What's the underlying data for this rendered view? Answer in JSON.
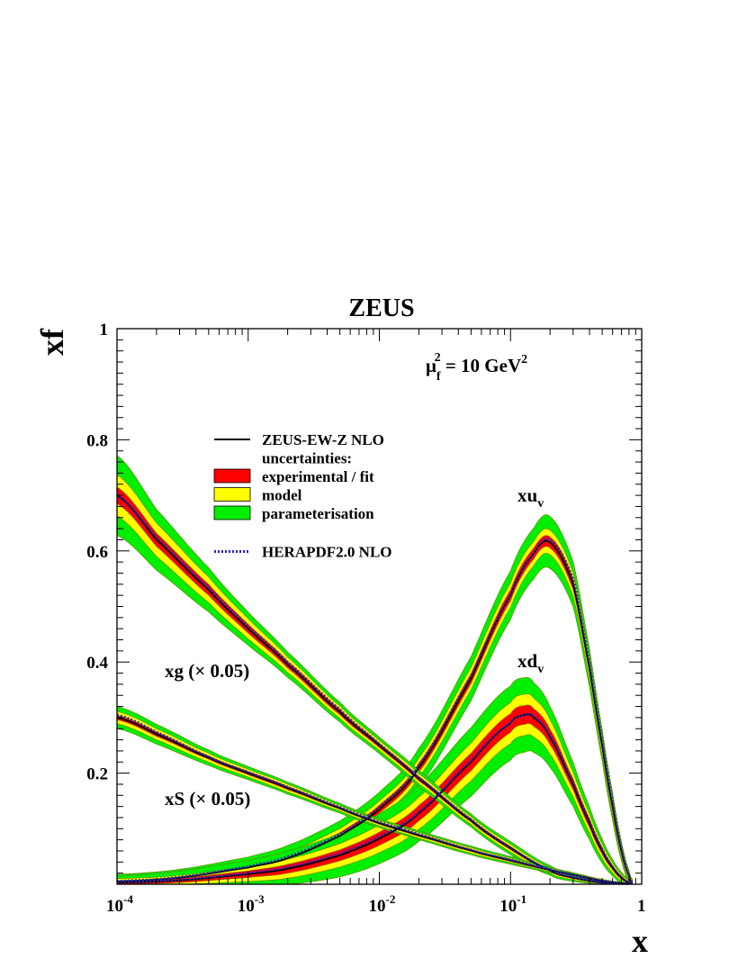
{
  "chart_data": {
    "type": "line",
    "title": "ZEUS",
    "xlabel": "x",
    "ylabel": "xf",
    "scale_annotation": {
      "main": "μ",
      "sub": "f",
      "sup": "2",
      "rest": " = 10 GeV",
      "rest_sup": "2"
    },
    "xscale": "log",
    "xlim": [
      0.0001,
      1
    ],
    "ylim": [
      0,
      1
    ],
    "x_ticks": [
      {
        "base": "10",
        "exp": "-4",
        "value": 0.0001
      },
      {
        "base": "10",
        "exp": "-3",
        "value": 0.001
      },
      {
        "base": "10",
        "exp": "-2",
        "value": 0.01
      },
      {
        "base": "10",
        "exp": "-1",
        "value": 0.1
      },
      {
        "base": "1",
        "exp": "",
        "value": 1
      }
    ],
    "y_ticks": [
      {
        "label": "0.2",
        "value": 0.2
      },
      {
        "label": "0.4",
        "value": 0.4
      },
      {
        "label": "0.6",
        "value": 0.6
      },
      {
        "label": "0.8",
        "value": 0.8
      },
      {
        "label": "1",
        "value": 1.0
      }
    ],
    "grid": false,
    "legend": {
      "placement": "top-left",
      "entries": [
        {
          "label": "ZEUS-EW-Z NLO",
          "style": "line",
          "color": "#000000"
        },
        {
          "label": "uncertainties:",
          "style": "none"
        },
        {
          "label": "experimental / fit",
          "style": "box",
          "color": "#ff0000"
        },
        {
          "label": "model",
          "style": "box",
          "color": "#ffff00"
        },
        {
          "label": "parameterisation",
          "style": "box",
          "color": "#00ee00"
        },
        {
          "label": "HERAPDF2.0 NLO",
          "style": "dotted",
          "color": "#2222cc"
        }
      ]
    },
    "series": [
      {
        "id": "xuv",
        "label": {
          "main": "xu",
          "sub": "v"
        },
        "x": [
          0.0001,
          0.0003,
          0.001,
          0.002,
          0.005,
          0.01,
          0.02,
          0.05,
          0.1,
          0.15,
          0.2,
          0.3,
          0.4,
          0.5,
          0.6,
          0.7,
          0.8,
          0.85
        ],
        "y": [
          0.005,
          0.012,
          0.03,
          0.047,
          0.087,
          0.135,
          0.21,
          0.37,
          0.52,
          0.595,
          0.615,
          0.54,
          0.39,
          0.25,
          0.14,
          0.06,
          0.015,
          0.003
        ],
        "exp_unc": [
          0.003,
          0.003,
          0.004,
          0.005,
          0.006,
          0.007,
          0.008,
          0.009,
          0.01,
          0.01,
          0.01,
          0.01,
          0.009,
          0.008,
          0.007,
          0.005,
          0.003,
          0.002
        ],
        "model_unc": [
          0.004,
          0.004,
          0.005,
          0.006,
          0.007,
          0.008,
          0.009,
          0.011,
          0.012,
          0.012,
          0.012,
          0.011,
          0.01,
          0.009,
          0.008,
          0.006,
          0.004,
          0.002
        ],
        "param_unc": [
          0.006,
          0.008,
          0.01,
          0.012,
          0.014,
          0.016,
          0.018,
          0.02,
          0.022,
          0.024,
          0.025,
          0.02,
          0.016,
          0.012,
          0.01,
          0.007,
          0.004,
          0.002
        ],
        "herapdf": [
          0.006,
          0.013,
          0.032,
          0.05,
          0.09,
          0.14,
          0.215,
          0.375,
          0.52,
          0.595,
          0.62,
          0.55,
          0.4,
          0.26,
          0.15,
          0.065,
          0.017,
          0.003
        ]
      },
      {
        "id": "xdv",
        "label": {
          "main": "xd",
          "sub": "v"
        },
        "x": [
          0.0001,
          0.0003,
          0.001,
          0.002,
          0.005,
          0.01,
          0.02,
          0.05,
          0.1,
          0.13,
          0.15,
          0.2,
          0.3,
          0.4,
          0.5,
          0.6,
          0.7,
          0.8,
          0.85
        ],
        "y": [
          0.003,
          0.007,
          0.018,
          0.028,
          0.052,
          0.082,
          0.128,
          0.22,
          0.29,
          0.305,
          0.3,
          0.265,
          0.18,
          0.11,
          0.06,
          0.03,
          0.012,
          0.003,
          0.001
        ],
        "exp_unc": [
          0.003,
          0.004,
          0.006,
          0.008,
          0.01,
          0.012,
          0.014,
          0.016,
          0.017,
          0.017,
          0.016,
          0.014,
          0.01,
          0.008,
          0.006,
          0.004,
          0.003,
          0.002,
          0.001
        ],
        "model_unc": [
          0.004,
          0.005,
          0.007,
          0.009,
          0.011,
          0.013,
          0.015,
          0.018,
          0.02,
          0.02,
          0.019,
          0.017,
          0.012,
          0.009,
          0.007,
          0.005,
          0.003,
          0.002,
          0.001
        ],
        "param_unc": [
          0.005,
          0.008,
          0.012,
          0.015,
          0.018,
          0.02,
          0.022,
          0.028,
          0.03,
          0.03,
          0.028,
          0.024,
          0.018,
          0.013,
          0.009,
          0.006,
          0.004,
          0.002,
          0.001
        ],
        "herapdf": [
          0.004,
          0.008,
          0.02,
          0.031,
          0.055,
          0.086,
          0.13,
          0.222,
          0.29,
          0.305,
          0.302,
          0.268,
          0.185,
          0.115,
          0.064,
          0.032,
          0.013,
          0.003,
          0.001
        ]
      },
      {
        "id": "xg",
        "label": {
          "main": "xg (× 0.05)",
          "sub": ""
        },
        "x": [
          0.0001,
          0.0002,
          0.0005,
          0.001,
          0.002,
          0.005,
          0.01,
          0.02,
          0.05,
          0.1,
          0.2,
          0.3,
          0.5,
          0.8
        ],
        "y": [
          0.7,
          0.62,
          0.53,
          0.46,
          0.395,
          0.31,
          0.25,
          0.19,
          0.115,
          0.065,
          0.025,
          0.012,
          0.003,
          0.0005
        ],
        "exp_unc": [
          0.015,
          0.012,
          0.01,
          0.008,
          0.006,
          0.005,
          0.004,
          0.004,
          0.003,
          0.003,
          0.002,
          0.002,
          0.001,
          0.0005
        ],
        "model_unc": [
          0.022,
          0.018,
          0.013,
          0.01,
          0.008,
          0.006,
          0.005,
          0.005,
          0.004,
          0.004,
          0.003,
          0.002,
          0.001,
          0.0005
        ],
        "param_unc": [
          0.035,
          0.025,
          0.017,
          0.012,
          0.009,
          0.007,
          0.006,
          0.006,
          0.005,
          0.005,
          0.004,
          0.003,
          0.002,
          0.001
        ],
        "herapdf": [
          0.7,
          0.625,
          0.535,
          0.465,
          0.4,
          0.315,
          0.253,
          0.192,
          0.117,
          0.066,
          0.026,
          0.013,
          0.003,
          0.0005
        ]
      },
      {
        "id": "xS",
        "label": {
          "main": "xS (× 0.05)",
          "sub": ""
        },
        "x": [
          0.0001,
          0.0002,
          0.0005,
          0.001,
          0.002,
          0.005,
          0.01,
          0.02,
          0.05,
          0.1,
          0.2,
          0.3,
          0.5,
          0.8
        ],
        "y": [
          0.3,
          0.27,
          0.228,
          0.2,
          0.173,
          0.137,
          0.11,
          0.088,
          0.061,
          0.043,
          0.026,
          0.017,
          0.006,
          0.001
        ],
        "exp_unc": [
          0.004,
          0.004,
          0.003,
          0.003,
          0.003,
          0.002,
          0.002,
          0.002,
          0.002,
          0.002,
          0.001,
          0.001,
          0.001,
          0.0005
        ],
        "model_unc": [
          0.007,
          0.006,
          0.005,
          0.004,
          0.004,
          0.003,
          0.003,
          0.003,
          0.003,
          0.002,
          0.002,
          0.001,
          0.001,
          0.0005
        ],
        "param_unc": [
          0.009,
          0.008,
          0.006,
          0.005,
          0.004,
          0.004,
          0.003,
          0.003,
          0.003,
          0.003,
          0.002,
          0.002,
          0.001,
          0.0005
        ],
        "herapdf": [
          0.305,
          0.274,
          0.23,
          0.202,
          0.175,
          0.139,
          0.112,
          0.09,
          0.062,
          0.044,
          0.027,
          0.017,
          0.006,
          0.001
        ]
      }
    ]
  },
  "colors": {
    "experimental": "#ff0000",
    "model": "#ffff00",
    "parameterisation": "#00ee00",
    "central": "#000000",
    "herapdf": "#2222cc",
    "band_edge": "#7a7a00"
  }
}
